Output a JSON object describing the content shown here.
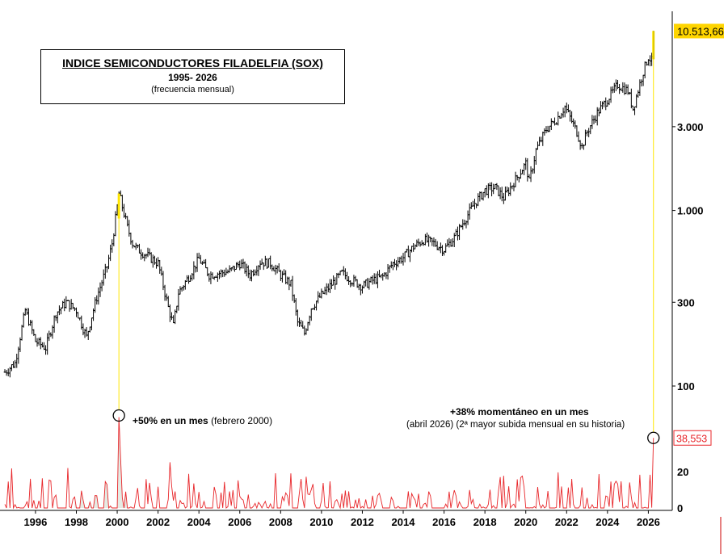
{
  "title": {
    "main": "INDICE SEMICONDUCTORES FILADELFIA (SOX)",
    "period": "1995- 2026",
    "frequency": "(frecuencia mensual)"
  },
  "annotations": {
    "feb2000_bold": "+50% en un mes",
    "feb2000_note": "(febrero 2000)",
    "apr2026_bold": "+38% momentáneo en un mes",
    "apr2026_note": "(abril 2026) (2ª mayor subida mensual en su historia)"
  },
  "colors": {
    "price_bars": "#000000",
    "monthly_change": "#e8262a",
    "highlight_marker": "#ffe600",
    "last_price_badge": "#ffd500",
    "last_change_badge_text": "#e8262a"
  },
  "chart_data": [
    {
      "type": "line",
      "title": "INDICE SEMICONDUCTORES FILADELFIA (SOX)",
      "scale": "log",
      "ylim": [
        100,
        11500
      ],
      "y_ticks": [
        "10.513,66",
        "3.000",
        "1.000",
        "300",
        "100"
      ],
      "y_tick_values": [
        10513.66,
        3000,
        1000,
        300,
        100
      ],
      "last_value": 10513.66,
      "last_value_label": "10.513,66",
      "x": [
        "1994-07",
        "1995-01",
        "1995-07",
        "1996-01",
        "1996-07",
        "1997-01",
        "1997-07",
        "1998-01",
        "1998-07",
        "1998-10",
        "1999-01",
        "1999-07",
        "1999-10",
        "2000-01",
        "2000-02",
        "2000-03",
        "2000-07",
        "2000-10",
        "2001-01",
        "2001-07",
        "2002-01",
        "2002-07",
        "2002-10",
        "2003-01",
        "2003-07",
        "2004-01",
        "2004-07",
        "2005-01",
        "2005-07",
        "2006-01",
        "2006-07",
        "2007-01",
        "2007-07",
        "2008-01",
        "2008-07",
        "2008-11",
        "2009-03",
        "2009-07",
        "2010-01",
        "2010-07",
        "2011-01",
        "2011-07",
        "2012-01",
        "2012-07",
        "2013-01",
        "2013-07",
        "2014-01",
        "2014-07",
        "2015-01",
        "2015-07",
        "2016-01",
        "2016-07",
        "2017-01",
        "2017-07",
        "2018-01",
        "2018-07",
        "2018-12",
        "2019-07",
        "2020-01",
        "2020-03",
        "2020-07",
        "2021-01",
        "2021-07",
        "2021-12",
        "2022-07",
        "2022-10",
        "2023-01",
        "2023-07",
        "2024-01",
        "2024-07",
        "2025-01",
        "2025-04",
        "2025-10",
        "2026-01",
        "2026-03",
        "2026-04"
      ],
      "values": [
        120,
        135,
        270,
        180,
        165,
        260,
        300,
        270,
        190,
        250,
        320,
        480,
        650,
        1050,
        1250,
        1150,
        800,
        650,
        600,
        550,
        500,
        280,
        220,
        340,
        420,
        530,
        430,
        440,
        450,
        500,
        430,
        510,
        500,
        430,
        380,
        230,
        200,
        280,
        330,
        380,
        440,
        400,
        370,
        400,
        420,
        500,
        540,
        620,
        680,
        650,
        600,
        700,
        880,
        1100,
        1300,
        1350,
        1180,
        1500,
        1850,
        1450,
        2200,
        2900,
        3300,
        3900,
        2800,
        2300,
        2800,
        3600,
        4300,
        5200,
        4800,
        3800,
        6200,
        7500,
        7100,
        10513.66
      ]
    },
    {
      "type": "line",
      "title": "",
      "ylim": [
        0,
        45
      ],
      "y_ticks": [
        "20",
        "0"
      ],
      "last_value_label": "38,553",
      "last_value": 38.553,
      "x_ticks": [
        "1996",
        "1998",
        "2000",
        "2002",
        "2004",
        "2006",
        "2008",
        "2010",
        "2012",
        "2014",
        "2016",
        "2018",
        "2020",
        "2022",
        "2024",
        "2026"
      ],
      "highlights": [
        {
          "x": "2000-02",
          "value": 50
        },
        {
          "x": "2026-04",
          "value": 38.553
        }
      ]
    }
  ]
}
